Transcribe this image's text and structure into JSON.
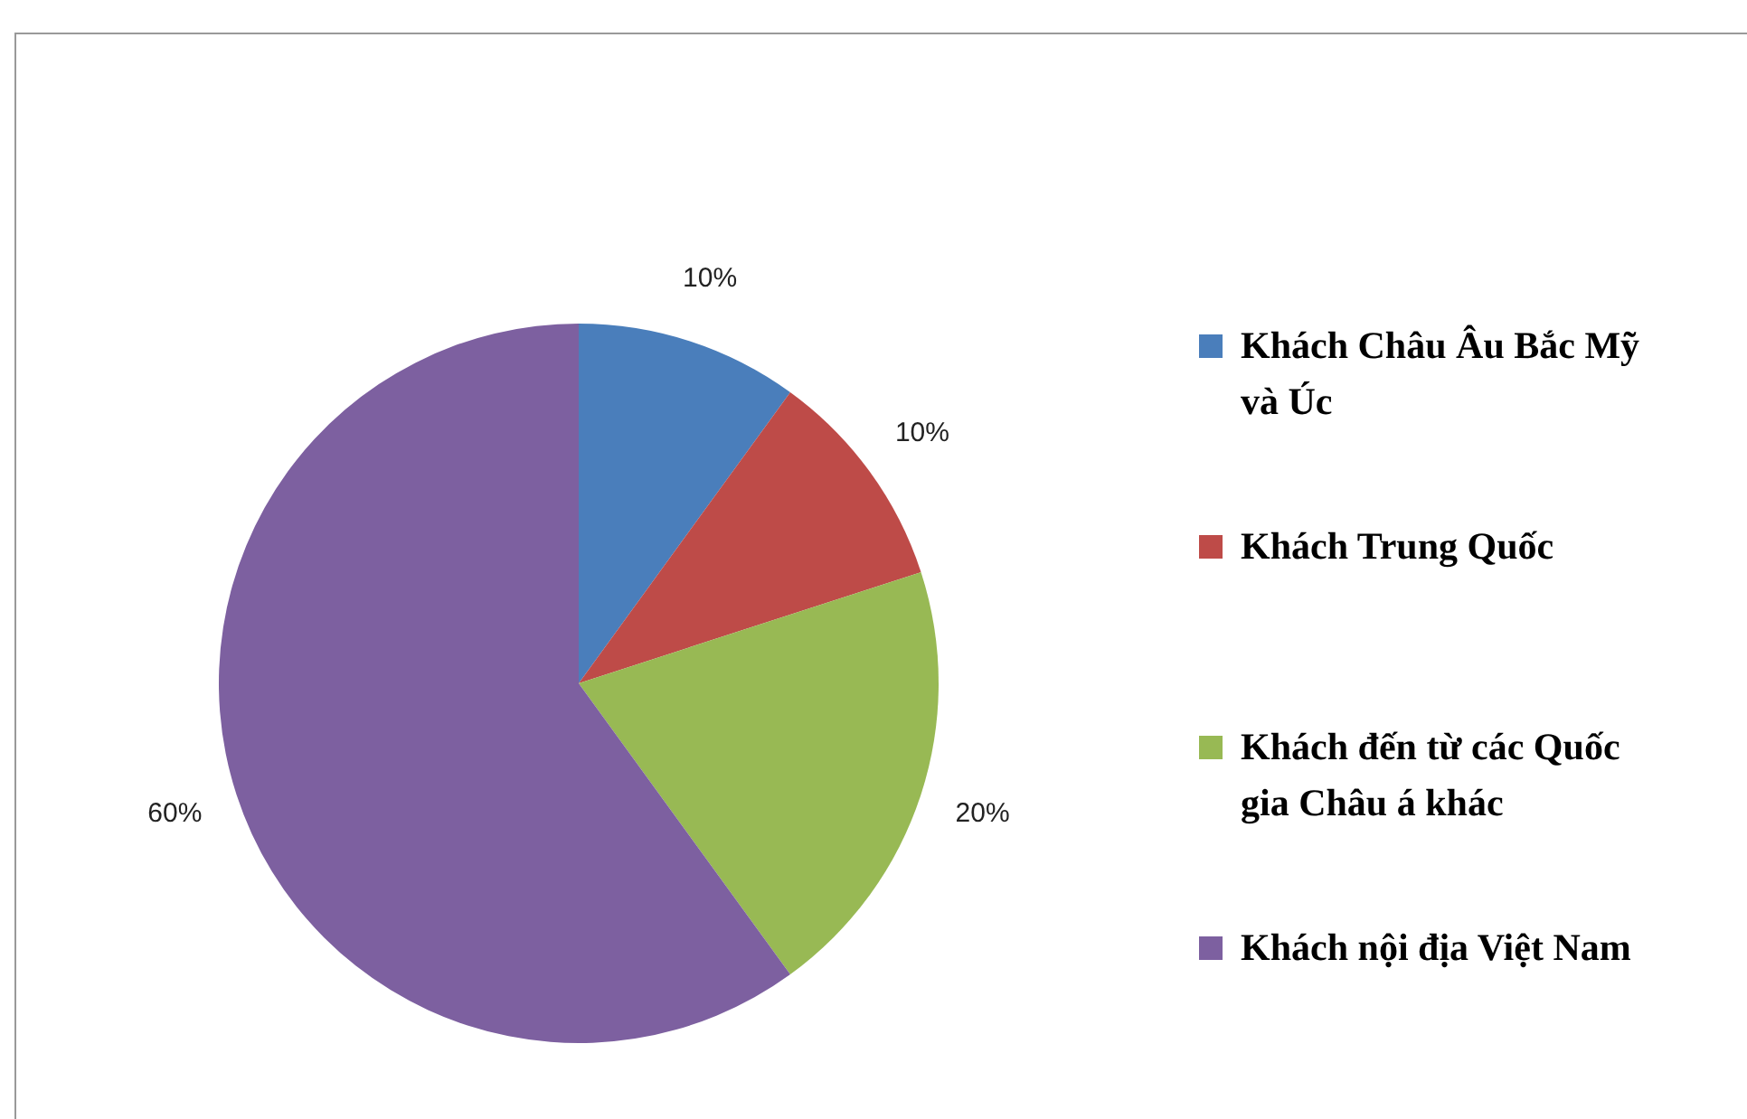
{
  "chart_data": {
    "type": "pie",
    "categories": [
      "Khách Châu Âu Bắc Mỹ và Úc",
      "Khách Trung Quốc",
      "Khách đến từ các Quốc gia Châu á khác",
      "Khách nội địa Việt Nam"
    ],
    "values": [
      10,
      10,
      20,
      60
    ],
    "colors": [
      "#4a7ebb",
      "#be4b48",
      "#98b954",
      "#7d60a0"
    ],
    "value_labels": [
      "10%",
      "10%",
      "20%",
      "60%"
    ],
    "legend": "right"
  }
}
